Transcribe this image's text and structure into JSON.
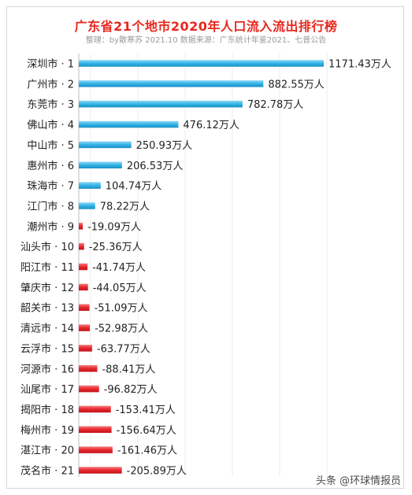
{
  "chart_data": {
    "type": "bar",
    "orientation": "horizontal",
    "title": "广东省21个地市2020年人口流入流出排行榜",
    "subtitle": "整理：by散寒苏 2021.10 数据来源：广东统计年鉴2021、七普公告",
    "unit": "万人",
    "categories": [
      "深圳市 · 1",
      "广州市 · 2",
      "东莞市 · 3",
      "佛山市 · 4",
      "中山市 · 5",
      "惠州市 · 6",
      "珠海市 · 7",
      "江门市 · 8",
      "潮州市 · 9",
      "汕头市 · 10",
      "阳江市 · 11",
      "肇庆市 · 12",
      "韶关市 · 13",
      "清远市 · 14",
      "云浮市 · 15",
      "河源市 · 16",
      "汕尾市 · 17",
      "揭阳市 · 18",
      "梅州市 · 19",
      "湛江市 · 20",
      "茂名市 · 21"
    ],
    "values": [
      1171.43,
      882.55,
      782.78,
      476.12,
      250.93,
      206.53,
      104.74,
      78.22,
      -19.09,
      -25.36,
      -41.74,
      -44.05,
      -51.09,
      -52.98,
      -63.77,
      -88.41,
      -96.82,
      -153.41,
      -156.64,
      -161.46,
      -205.89
    ],
    "value_labels": [
      "1171.43万人",
      "882.55万人",
      "782.78万人",
      "476.12万人",
      "250.93万人",
      "206.53万人",
      "104.74万人",
      "78.22万人",
      "-19.09万人",
      "-25.36万人",
      "-41.74万人",
      "-44.05万人",
      "-51.09万人",
      "-52.98万人",
      "-63.77万人",
      "-88.41万人",
      "-96.82万人",
      "-153.41万人",
      "-156.64万人",
      "-161.46万人",
      "-205.89万人"
    ],
    "colors": {
      "positive": "#33b3e6",
      "negative": "#e8262d"
    },
    "grid": true
  },
  "watermark": "头条 @环球情报员"
}
